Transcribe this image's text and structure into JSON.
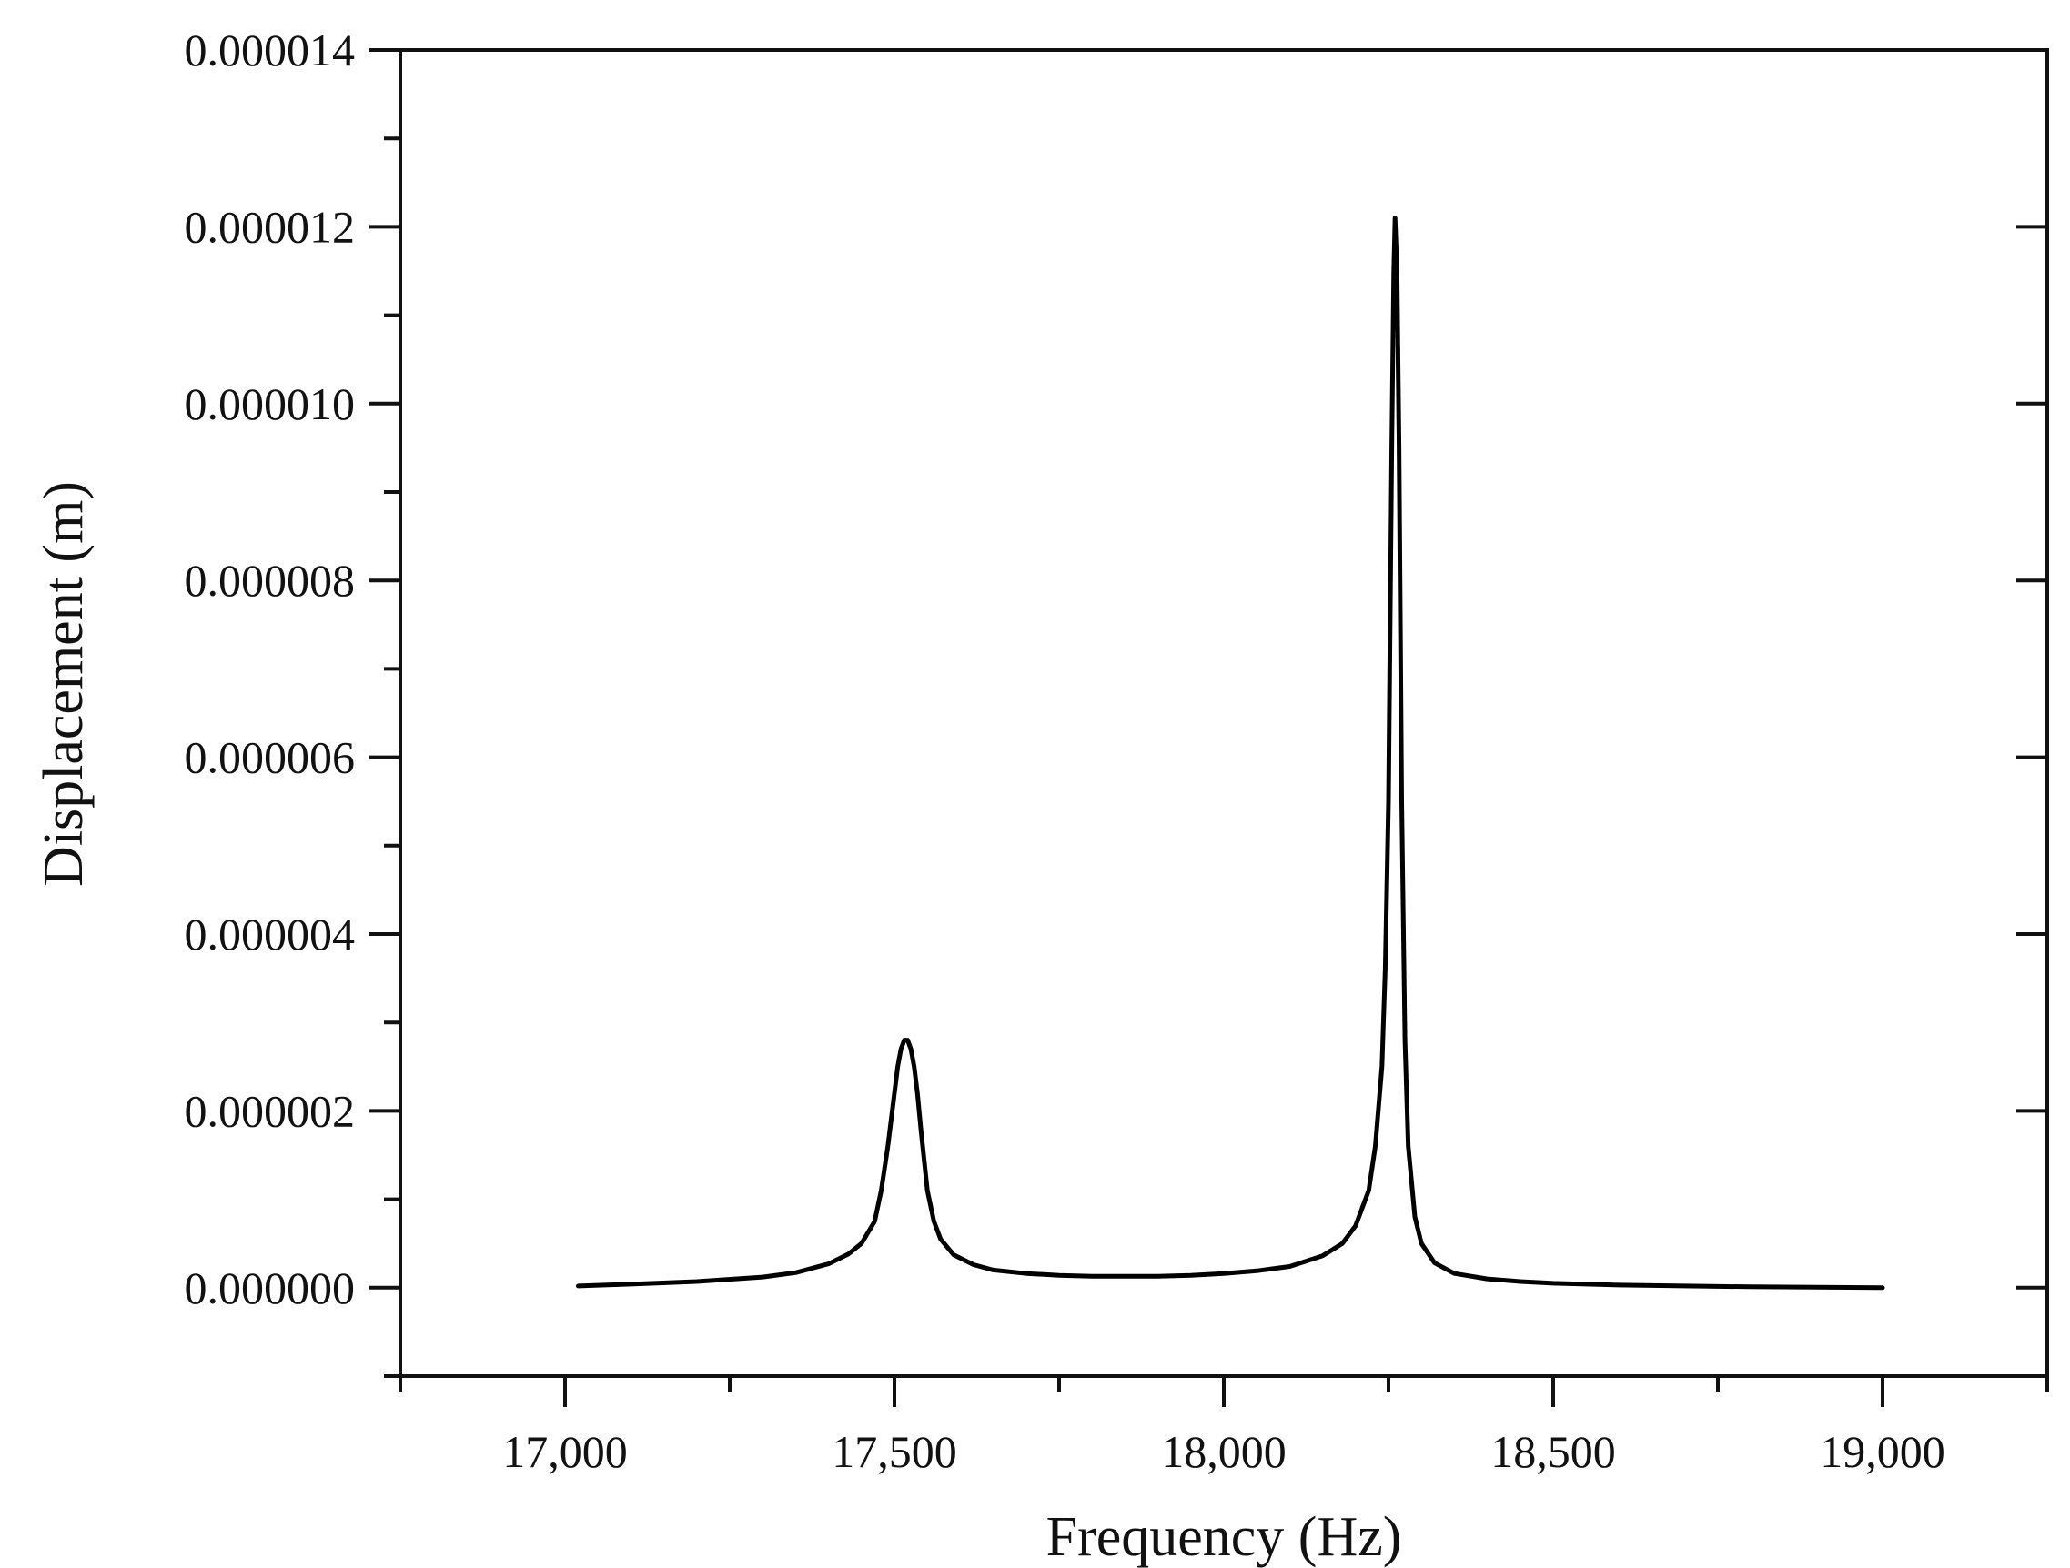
{
  "chart_data": {
    "type": "line",
    "title": "",
    "xlabel": "Frequency (Hz)",
    "ylabel": "Displacement (m)",
    "xlim": [
      16750,
      19250
    ],
    "ylim": [
      -1e-06,
      1.4e-05
    ],
    "x_ticks": [
      {
        "value": 17000,
        "label": "17,000"
      },
      {
        "value": 17500,
        "label": "17,500"
      },
      {
        "value": 18000,
        "label": "18,000"
      },
      {
        "value": 18500,
        "label": "18,500"
      },
      {
        "value": 19000,
        "label": "19,000"
      }
    ],
    "x_minor_ticks": [
      16750,
      17250,
      17750,
      18250,
      18750,
      19250
    ],
    "y_ticks": [
      {
        "value": 0.0,
        "label": "0.000000"
      },
      {
        "value": 2e-06,
        "label": "0.000002"
      },
      {
        "value": 4e-06,
        "label": "0.000004"
      },
      {
        "value": 6e-06,
        "label": "0.000006"
      },
      {
        "value": 8e-06,
        "label": "0.000008"
      },
      {
        "value": 1e-05,
        "label": "0.000010"
      },
      {
        "value": 1.2e-05,
        "label": "0.000012"
      },
      {
        "value": 1.4e-05,
        "label": "0.000014"
      }
    ],
    "y_minor_ticks": [
      -1e-06,
      1e-06,
      3e-06,
      5e-06,
      7e-06,
      9e-06,
      1.1e-05,
      1.3e-05
    ],
    "grid": false,
    "legend": "none",
    "series": [
      {
        "color": "#000000",
        "x": [
          17020,
          17100,
          17200,
          17300,
          17350,
          17400,
          17430,
          17450,
          17470,
          17480,
          17490,
          17500,
          17505,
          17510,
          17515,
          17520,
          17525,
          17530,
          17535,
          17540,
          17550,
          17560,
          17570,
          17590,
          17620,
          17650,
          17700,
          17750,
          17800,
          17850,
          17900,
          17950,
          18000,
          18050,
          18100,
          18150,
          18180,
          18200,
          18220,
          18230,
          18240,
          18245,
          18250,
          18255,
          18258,
          18260,
          18263,
          18266,
          18270,
          18275,
          18280,
          18290,
          18300,
          18320,
          18350,
          18400,
          18450,
          18500,
          18600,
          18700,
          18800,
          18900,
          19000
        ],
        "y": [
          2e-08,
          4e-08,
          7e-08,
          1.2e-07,
          1.7e-07,
          2.7e-07,
          3.8e-07,
          5e-07,
          7.5e-07,
          1.1e-06,
          1.6e-06,
          2.2e-06,
          2.5e-06,
          2.7e-06,
          2.8e-06,
          2.8e-06,
          2.7e-06,
          2.5e-06,
          2.2e-06,
          1.8e-06,
          1.1e-06,
          7.5e-07,
          5.5e-07,
          3.7e-07,
          2.6e-07,
          2e-07,
          1.6e-07,
          1.4e-07,
          1.3e-07,
          1.3e-07,
          1.3e-07,
          1.4e-07,
          1.6e-07,
          1.9e-07,
          2.4e-07,
          3.6e-07,
          5e-07,
          7e-07,
          1.1e-06,
          1.6e-06,
          2.5e-06,
          3.6e-06,
          5.5e-06,
          9.5e-06,
          1.15e-05,
          1.21e-05,
          1.15e-05,
          9.5e-06,
          5.5e-06,
          2.8e-06,
          1.6e-06,
          8e-07,
          5e-07,
          2.8e-07,
          1.6e-07,
          1e-07,
          7e-08,
          5e-08,
          3e-08,
          2e-08,
          1e-08,
          5e-09,
          0.0
        ]
      }
    ]
  }
}
